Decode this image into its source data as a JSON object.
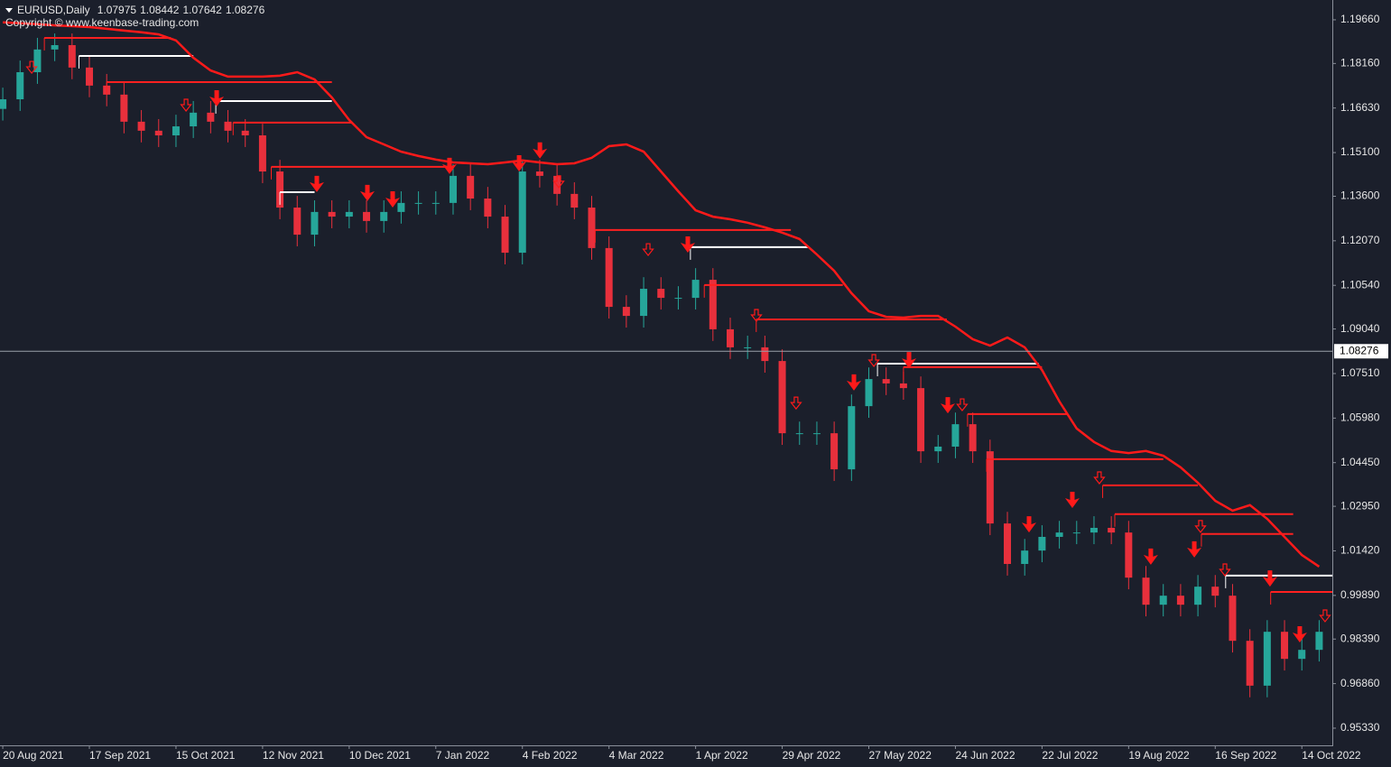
{
  "chart_data": {
    "type": "candlestick",
    "title": "EURUSD,Daily",
    "quote": [
      1.07975,
      1.08442,
      1.07642,
      1.08276
    ],
    "subtitle": "Copyright © www.keenbase-trading.com",
    "categories": [
      "20 Aug 2021",
      null,
      null,
      null,
      null,
      "17 Sep 2021",
      null,
      null,
      null,
      null,
      "15 Oct 2021",
      null,
      null,
      null,
      null,
      "12 Nov 2021",
      null,
      null,
      null,
      null,
      "10 Dec 2021",
      null,
      null,
      null,
      null,
      "7 Jan 2022",
      null,
      null,
      null,
      null,
      "4 Feb 2022",
      null,
      null,
      null,
      null,
      "4 Mar 2022",
      null,
      null,
      null,
      null,
      "1 Apr 2022",
      null,
      null,
      null,
      null,
      "29 Apr 2022",
      null,
      null,
      null,
      null,
      "27 May 2022",
      null,
      null,
      null,
      null,
      "24 Jun 2022",
      null,
      null,
      null,
      null,
      "22 Jul 2022",
      null,
      null,
      null,
      null,
      "19 Aug 2022",
      null,
      null,
      null,
      null,
      "16 Sep 2022",
      null,
      null,
      null,
      null,
      "14 Oct 2022",
      null
    ],
    "open": [
      1.166,
      1.1693,
      1.1786,
      1.1864,
      1.1879,
      1.1802,
      1.174,
      1.1709,
      1.1616,
      1.1585,
      1.1569,
      1.16,
      1.1647,
      1.1616,
      1.1585,
      1.1569,
      1.1445,
      1.1321,
      1.1228,
      1.1306,
      1.129,
      1.1306,
      1.1275,
      1.1306,
      1.1337,
      1.1337,
      1.1337,
      1.143,
      1.1352,
      1.129,
      1.1166,
      1.1445,
      1.143,
      1.1368,
      1.1321,
      1.1182,
      1.098,
      1.0949,
      1.1042,
      1.1011,
      1.1011,
      1.1073,
      1.0903,
      1.0841,
      1.0841,
      1.0794,
      1.0546,
      1.0546,
      1.0546,
      1.0422,
      1.0639,
      1.0732,
      1.0717,
      1.0701,
      1.0484,
      1.05,
      1.0577,
      1.0484,
      1.0236,
      1.0097,
      1.0143,
      1.019,
      1.0205,
      1.0205,
      1.0221,
      1.0205,
      1.005,
      0.9957,
      0.9988,
      0.9957,
      1.0019,
      0.9988,
      0.9833,
      0.9679,
      0.9864,
      0.9771,
      0.9802
    ],
    "high": [
      1.1733,
      1.1826,
      1.1904,
      1.1919,
      1.1919,
      1.1842,
      1.178,
      1.1749,
      1.1656,
      1.1625,
      1.164,
      1.1687,
      1.1687,
      1.1656,
      1.1625,
      1.1609,
      1.1485,
      1.1361,
      1.1346,
      1.1346,
      1.1346,
      1.1346,
      1.1346,
      1.1377,
      1.1377,
      1.1377,
      1.147,
      1.147,
      1.1392,
      1.133,
      1.1485,
      1.1485,
      1.147,
      1.1408,
      1.1361,
      1.1222,
      1.102,
      1.1082,
      1.1082,
      1.1051,
      1.1113,
      1.1113,
      1.0943,
      1.0881,
      1.0881,
      1.0834,
      1.0586,
      1.0586,
      1.0586,
      1.0679,
      1.0772,
      1.0772,
      1.0757,
      1.0741,
      1.054,
      1.0617,
      1.0617,
      1.0524,
      1.0276,
      1.0183,
      1.023,
      1.0245,
      1.0245,
      1.0261,
      1.0261,
      1.0245,
      1.009,
      1.0028,
      1.0028,
      1.0059,
      1.0059,
      1.0028,
      0.9873,
      0.9904,
      0.9904,
      0.9842,
      0.9904
    ],
    "low": [
      1.162,
      1.1653,
      1.1746,
      1.1824,
      1.1762,
      1.17,
      1.1669,
      1.1576,
      1.1545,
      1.1529,
      1.1529,
      1.156,
      1.1576,
      1.1545,
      1.1529,
      1.1405,
      1.1281,
      1.1188,
      1.1188,
      1.125,
      1.125,
      1.1235,
      1.1235,
      1.1266,
      1.1297,
      1.1297,
      1.1297,
      1.1312,
      1.125,
      1.1126,
      1.1126,
      1.139,
      1.1328,
      1.1281,
      1.1142,
      1.094,
      1.0909,
      1.0909,
      1.0971,
      1.0971,
      1.0971,
      1.0863,
      1.0801,
      1.0801,
      1.0754,
      1.0506,
      1.0506,
      1.0506,
      1.0382,
      1.0382,
      1.0599,
      1.0677,
      1.0661,
      1.0444,
      1.0444,
      1.046,
      1.0444,
      1.0196,
      1.0057,
      1.0057,
      1.0103,
      1.015,
      1.0165,
      1.0165,
      1.0165,
      1.001,
      0.9917,
      0.9917,
      0.9917,
      0.9917,
      0.9948,
      0.9793,
      0.9639,
      0.9639,
      0.9731,
      0.9731,
      0.9762
    ],
    "close": [
      1.1693,
      1.1786,
      1.1864,
      1.1879,
      1.1802,
      1.174,
      1.1709,
      1.1616,
      1.1585,
      1.1569,
      1.16,
      1.1647,
      1.1616,
      1.1585,
      1.1569,
      1.1445,
      1.1321,
      1.1228,
      1.1306,
      1.129,
      1.1306,
      1.1275,
      1.1306,
      1.1337,
      1.1337,
      1.1337,
      1.143,
      1.1352,
      1.129,
      1.1166,
      1.1445,
      1.143,
      1.1368,
      1.1321,
      1.1182,
      1.098,
      1.0949,
      1.1042,
      1.1011,
      1.1011,
      1.1073,
      1.0903,
      1.0841,
      1.0841,
      1.0794,
      1.0546,
      1.0546,
      1.0546,
      1.0422,
      1.0639,
      1.0732,
      1.0717,
      1.0701,
      1.0484,
      1.05,
      1.0577,
      1.0484,
      1.0236,
      1.0097,
      1.0143,
      1.019,
      1.0205,
      1.0205,
      1.0221,
      1.0205,
      1.005,
      0.9957,
      0.9988,
      0.9957,
      1.0019,
      0.9988,
      0.9833,
      0.9679,
      0.9864,
      0.9771,
      0.9802,
      0.9864
    ],
    "up_color": "#26a69a",
    "down_color": "#e8303c",
    "envelope": {
      "color": "#ff1a1a",
      "values": [
        1.1957,
        1.1954,
        1.1951,
        1.1947,
        1.1944,
        1.1941,
        1.1935,
        1.1929,
        1.1923,
        1.1916,
        1.1895,
        1.1836,
        1.1792,
        1.1771,
        1.1771,
        1.1771,
        1.1774,
        1.1786,
        1.1761,
        1.1699,
        1.1622,
        1.1563,
        1.1538,
        1.1513,
        1.1498,
        1.1486,
        1.1476,
        1.1473,
        1.147,
        1.1476,
        1.1483,
        1.1476,
        1.147,
        1.1473,
        1.1492,
        1.1532,
        1.1538,
        1.1513,
        1.1445,
        1.1377,
        1.1312,
        1.129,
        1.1281,
        1.1269,
        1.1253,
        1.1235,
        1.1213,
        1.116,
        1.1104,
        1.1027,
        1.0965,
        1.0946,
        1.0943,
        1.0949,
        1.0949,
        1.0912,
        1.0869,
        1.0847,
        1.0875,
        1.0841,
        1.0763,
        1.0655,
        1.0562,
        1.0516,
        1.0485,
        1.0478,
        1.0485,
        1.0469,
        1.0429,
        1.0376,
        1.0314,
        1.028,
        1.0299,
        1.0252,
        1.019,
        1.0128,
        1.0088
      ]
    },
    "levels": [
      {
        "y": 1.1904,
        "x": [
          2.4,
          9.7
        ],
        "color": "#ff2020"
      },
      {
        "y": 1.1842,
        "x": [
          4.4,
          11
        ],
        "color": "#ffffff"
      },
      {
        "y": 1.1752,
        "x": [
          6,
          19
        ],
        "color": "#ff2020"
      },
      {
        "y": 1.1687,
        "x": [
          12.3,
          19
        ],
        "color": "#ffffff"
      },
      {
        "y": 1.1613,
        "x": [
          13.3,
          20.2
        ],
        "color": "#ff2020"
      },
      {
        "y": 1.1461,
        "x": [
          15.5,
          26
        ],
        "color": "#ff2020"
      },
      {
        "y": 1.1374,
        "x": [
          16,
          18
        ],
        "color": "#ffffff"
      },
      {
        "y": 1.1244,
        "x": [
          34.2,
          45.5
        ],
        "color": "#ff2020"
      },
      {
        "y": 1.1185,
        "x": [
          39.7,
          46.5
        ],
        "color": "#ffffff"
      },
      {
        "y": 1.1055,
        "x": [
          40.5,
          48.5
        ],
        "color": "#ff2020"
      },
      {
        "y": 1.0937,
        "x": [
          43.5,
          54.5
        ],
        "color": "#ff2020"
      },
      {
        "y": 1.0785,
        "x": [
          50.5,
          59.8
        ],
        "color": "#ffffff"
      },
      {
        "y": 1.0773,
        "x": [
          52,
          60
        ],
        "color": "#ff2020"
      },
      {
        "y": 1.0612,
        "x": [
          55.7,
          61.5
        ],
        "color": "#ff2020"
      },
      {
        "y": 1.0457,
        "x": [
          56.8,
          67
        ],
        "color": "#ff2020"
      },
      {
        "y": 1.0367,
        "x": [
          63.5,
          69
        ],
        "color": "#ff2020"
      },
      {
        "y": 1.0268,
        "x": [
          64.2,
          74.5
        ],
        "color": "#ff2020"
      },
      {
        "y": 1.02,
        "x": [
          69.2,
          74.5
        ],
        "color": "#ff2020"
      },
      {
        "y": 1.0057,
        "x": [
          70.6,
          76.8
        ],
        "color": "#ffffff"
      },
      {
        "y": 1.0001,
        "x": [
          73.2,
          76.8
        ],
        "color": "#ff2020"
      }
    ],
    "arrows": [
      {
        "x": 12.35,
        "y": 1.1724,
        "style": "filled"
      },
      {
        "x": 18.13,
        "y": 1.143,
        "style": "filled"
      },
      {
        "x": 21.05,
        "y": 1.1399,
        "style": "filled"
      },
      {
        "x": 22.51,
        "y": 1.1377,
        "style": "filled"
      },
      {
        "x": 25.79,
        "y": 1.1492,
        "style": "filled"
      },
      {
        "x": 29.81,
        "y": 1.1501,
        "style": "filled"
      },
      {
        "x": 31.01,
        "y": 1.1545,
        "style": "filled"
      },
      {
        "x": 39.55,
        "y": 1.1222,
        "style": "filled"
      },
      {
        "x": 49.14,
        "y": 1.0748,
        "style": "filled"
      },
      {
        "x": 52.32,
        "y": 1.0825,
        "style": "filled"
      },
      {
        "x": 54.56,
        "y": 1.067,
        "style": "filled"
      },
      {
        "x": 59.25,
        "y": 1.0261,
        "style": "filled"
      },
      {
        "x": 61.75,
        "y": 1.0345,
        "style": "filled"
      },
      {
        "x": 66.28,
        "y": 1.015,
        "style": "filled"
      },
      {
        "x": 68.79,
        "y": 1.0175,
        "style": "filled"
      },
      {
        "x": 73.16,
        "y": 1.0075,
        "style": "filled"
      },
      {
        "x": 74.88,
        "y": 0.9883,
        "style": "filled"
      },
      {
        "x": 1.67,
        "y": 1.1823,
        "style": "hollow"
      },
      {
        "x": 10.58,
        "y": 1.1693,
        "style": "hollow"
      },
      {
        "x": 32.1,
        "y": 1.143,
        "style": "hollow"
      },
      {
        "x": 37.26,
        "y": 1.1197,
        "style": "hollow"
      },
      {
        "x": 43.51,
        "y": 1.0971,
        "style": "hollow"
      },
      {
        "x": 45.8,
        "y": 1.067,
        "style": "hollow"
      },
      {
        "x": 50.29,
        "y": 1.0816,
        "style": "hollow"
      },
      {
        "x": 55.39,
        "y": 1.0664,
        "style": "hollow"
      },
      {
        "x": 63.31,
        "y": 1.0413,
        "style": "hollow"
      },
      {
        "x": 69.15,
        "y": 1.0246,
        "style": "hollow"
      },
      {
        "x": 70.56,
        "y": 1.0097,
        "style": "hollow"
      },
      {
        "x": 76.34,
        "y": 0.9939,
        "style": "hollow"
      }
    ],
    "arrow_color": "#ff1a1a",
    "current_price": 1.08276,
    "xlim": [
      -0.16,
      76.76
    ],
    "ylim": [
      0.9474,
      1.2034
    ],
    "yticks": [
      {
        "value": 1.1966,
        "label": "1.19660"
      },
      {
        "value": 1.1816,
        "label": "1.18160"
      },
      {
        "value": 1.1663,
        "label": "1.16630"
      },
      {
        "value": 1.151,
        "label": "1.15100"
      },
      {
        "value": 1.136,
        "label": "1.13600"
      },
      {
        "value": 1.1207,
        "label": "1.12070"
      },
      {
        "value": 1.1054,
        "label": "1.10540"
      },
      {
        "value": 1.0904,
        "label": "1.09040"
      },
      {
        "value": 1.0751,
        "label": "1.07510"
      },
      {
        "value": 1.0598,
        "label": "1.05980"
      },
      {
        "value": 1.0445,
        "label": "1.04450"
      },
      {
        "value": 1.0295,
        "label": "1.02950"
      },
      {
        "value": 1.0142,
        "label": "1.01420"
      },
      {
        "value": 0.9989,
        "label": "0.99890"
      },
      {
        "value": 0.9839,
        "label": "0.98390"
      },
      {
        "value": 0.9686,
        "label": "0.96860"
      },
      {
        "value": 0.9533,
        "label": "0.95330"
      }
    ]
  }
}
